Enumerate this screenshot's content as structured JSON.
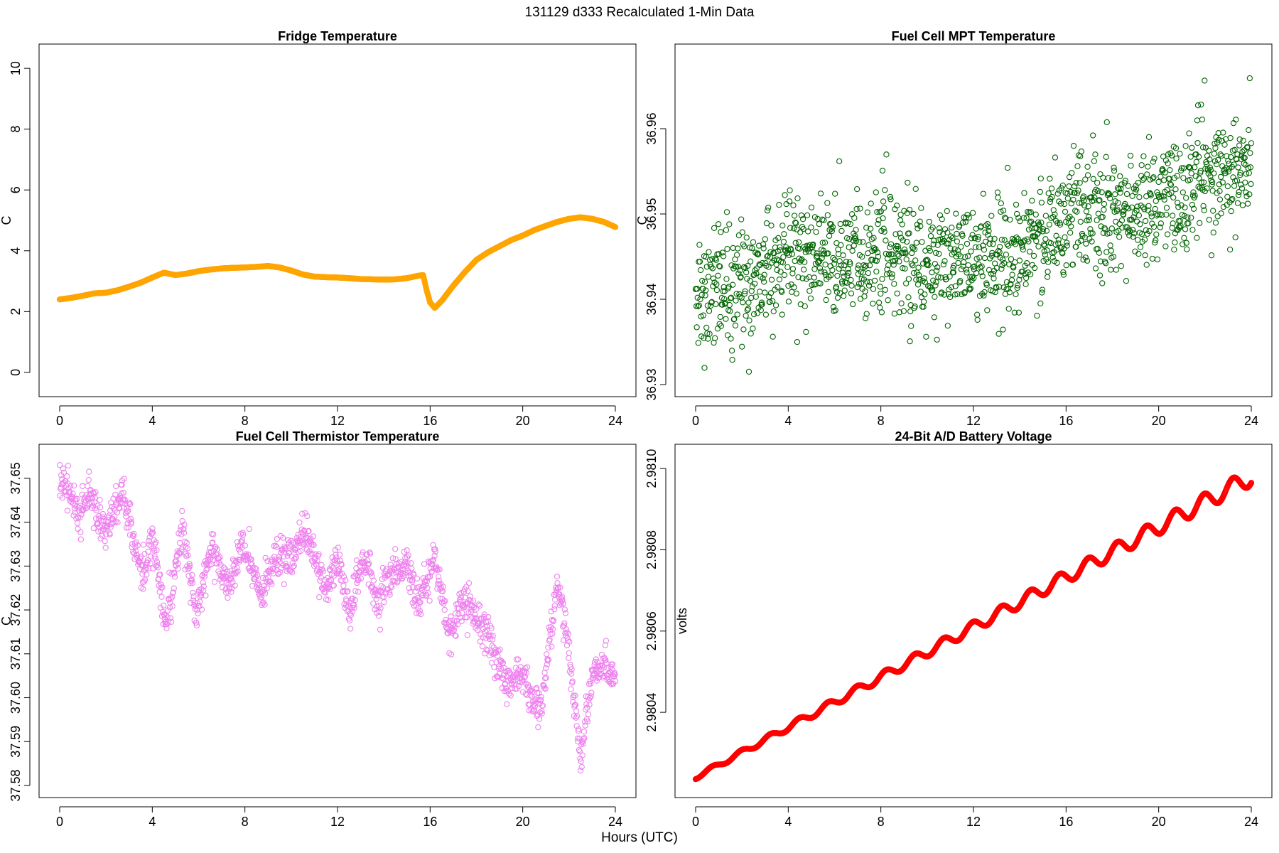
{
  "figure": {
    "title": "131129   d333   Recalculated 1-Min Data",
    "xlabel": "Hours (UTC)"
  },
  "chart_data": [
    {
      "id": "fridge",
      "type": "scatter",
      "title": "Fridge Temperature",
      "xlabel": "",
      "ylabel": "C",
      "color": "#FFA500",
      "point_style": "filled-dense",
      "xlim": [
        0,
        24
      ],
      "ylim": [
        -0.4,
        10.4
      ],
      "xticks": [
        0,
        4,
        8,
        12,
        16,
        20,
        24
      ],
      "xtick_labels": [
        "0",
        "4",
        "8",
        "12",
        "16",
        "20",
        "24"
      ],
      "yticks": [
        0,
        2,
        4,
        6,
        8,
        10
      ],
      "ytick_labels": [
        "0",
        "2",
        "4",
        "6",
        "8",
        "10"
      ],
      "x": [
        0,
        0.5,
        1,
        1.5,
        2,
        2.5,
        3,
        3.5,
        4,
        4.5,
        5,
        5.5,
        6,
        6.5,
        7,
        7.5,
        8,
        8.5,
        9,
        9.5,
        10,
        10.5,
        11,
        11.5,
        12,
        12.5,
        13,
        13.5,
        14,
        14.5,
        15,
        15.5,
        15.7,
        15.85,
        16,
        16.2,
        16.5,
        17,
        17.5,
        18,
        18.5,
        19,
        19.5,
        20,
        20.5,
        21,
        21.5,
        22,
        22.5,
        23,
        23.5,
        24
      ],
      "y": [
        2.4,
        2.45,
        2.52,
        2.6,
        2.62,
        2.7,
        2.82,
        2.95,
        3.12,
        3.28,
        3.2,
        3.25,
        3.33,
        3.38,
        3.42,
        3.44,
        3.45,
        3.47,
        3.5,
        3.45,
        3.35,
        3.22,
        3.15,
        3.13,
        3.12,
        3.1,
        3.07,
        3.06,
        3.05,
        3.06,
        3.1,
        3.18,
        3.2,
        2.7,
        2.3,
        2.12,
        2.35,
        2.85,
        3.3,
        3.7,
        3.95,
        4.15,
        4.35,
        4.5,
        4.68,
        4.82,
        4.95,
        5.05,
        5.1,
        5.05,
        4.95,
        4.78
      ]
    },
    {
      "id": "mpt",
      "type": "scatter",
      "title": "Fuel Cell MPT Temperature",
      "xlabel": "",
      "ylabel": "C",
      "color": "#006400",
      "point_style": "open-circle",
      "xlim": [
        0,
        24
      ],
      "ylim": [
        36.93,
        36.9685
      ],
      "xticks": [
        0,
        4,
        8,
        12,
        16,
        20,
        24
      ],
      "xtick_labels": [
        "0",
        "4",
        "8",
        "12",
        "16",
        "20",
        "24"
      ],
      "yticks": [
        36.93,
        36.94,
        36.95,
        36.96
      ],
      "ytick_labels": [
        "36.93",
        "36.94",
        "36.95",
        "36.96"
      ],
      "trend_x": [
        0,
        2,
        4,
        6,
        8,
        10,
        12,
        14,
        16,
        18,
        20,
        22,
        24
      ],
      "trend_y": [
        36.9415,
        36.9415,
        36.9455,
        36.9445,
        36.946,
        36.944,
        36.9445,
        36.9455,
        36.9495,
        36.9505,
        36.951,
        36.9545,
        36.9565
      ],
      "noise_sd": 0.0035,
      "n_points": 1440,
      "x_range": [
        0,
        24
      ]
    },
    {
      "id": "thermistor",
      "type": "scatter",
      "title": "Fuel Cell Thermistor Temperature",
      "xlabel": "",
      "ylabel": "C",
      "color": "#EE82EE",
      "point_style": "open-circle",
      "xlim": [
        0,
        24
      ],
      "ylim": [
        37.58,
        37.655
      ],
      "xticks": [
        0,
        4,
        8,
        12,
        16,
        20,
        24
      ],
      "xtick_labels": [
        "0",
        "4",
        "8",
        "12",
        "16",
        "20",
        "24"
      ],
      "yticks": [
        37.58,
        37.59,
        37.6,
        37.61,
        37.62,
        37.63,
        37.64,
        37.65
      ],
      "ytick_labels": [
        "37.58",
        "37.59",
        "37.60",
        "37.61",
        "37.62",
        "37.63",
        "37.64",
        "37.65"
      ],
      "trend_x": [
        0,
        0.8,
        1.3,
        2,
        2.7,
        3.2,
        3.6,
        4,
        4.6,
        5.3,
        5.9,
        6.6,
        7.2,
        7.9,
        8.7,
        9.3,
        10,
        10.6,
        11.5,
        12,
        12.5,
        13.2,
        13.7,
        14.3,
        15,
        15.5,
        16.2,
        16.8,
        17.5,
        18,
        18.5,
        19.3,
        19.8,
        20.3,
        20.8,
        21.5,
        22,
        22.5,
        23,
        23.6,
        24
      ],
      "trend_y": [
        37.65,
        37.642,
        37.646,
        37.638,
        37.647,
        37.636,
        37.628,
        37.636,
        37.617,
        37.638,
        37.619,
        37.635,
        37.624,
        37.636,
        37.622,
        37.632,
        37.632,
        37.638,
        37.624,
        37.632,
        37.62,
        37.632,
        37.622,
        37.627,
        37.631,
        37.621,
        37.633,
        37.614,
        37.622,
        37.619,
        37.614,
        37.603,
        37.607,
        37.6,
        37.598,
        37.626,
        37.61,
        37.586,
        37.605,
        37.607,
        37.605
      ],
      "noise_sd": 0.0022,
      "n_points": 1440,
      "x_range": [
        0,
        24
      ]
    },
    {
      "id": "battery",
      "type": "scatter",
      "title": "24-Bit A/D Battery Voltage",
      "xlabel": "",
      "ylabel": "volts",
      "color": "#FF0000",
      "point_style": "filled-dense",
      "xlim": [
        0,
        24
      ],
      "ylim": [
        2.98022,
        2.98103
      ],
      "xticks": [
        0,
        4,
        8,
        12,
        16,
        20,
        24
      ],
      "xtick_labels": [
        "0",
        "4",
        "8",
        "12",
        "16",
        "20",
        "24"
      ],
      "yticks": [
        2.9804,
        2.9806,
        2.9808,
        2.981
      ],
      "ytick_labels": [
        "2.9804",
        "2.9806",
        "2.9808",
        "2.9810"
      ],
      "trend_x": [
        0,
        24
      ],
      "trend_y": [
        2.98024,
        2.98098
      ],
      "oscillation": {
        "period_hours": 1.25,
        "amplitude_start": 5e-06,
        "amplitude_end": 2.2e-05,
        "phase_hours": 0.4
      }
    }
  ]
}
